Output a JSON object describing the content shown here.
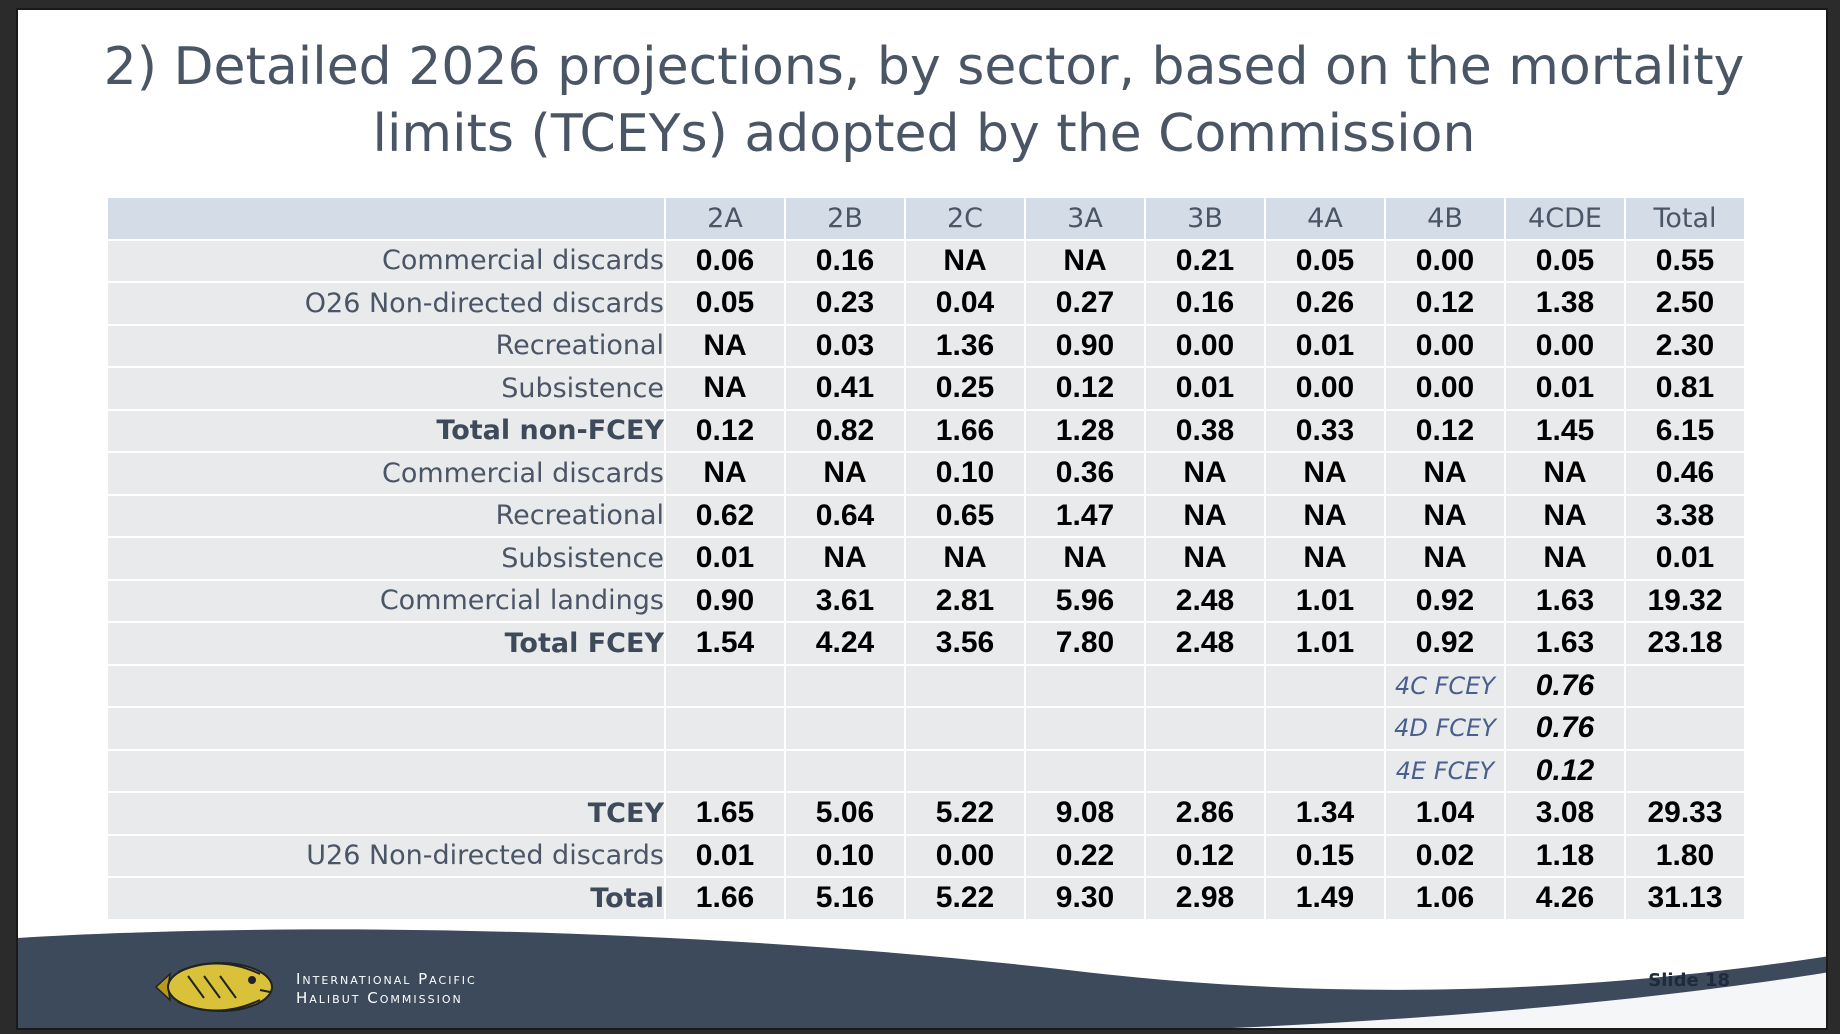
{
  "slide": {
    "title_line1": "2) Detailed 2026 projections, by sector, based on the mortality",
    "title_line2": "limits (TCEYs) adopted by the Commission",
    "org_line1": "International Pacific",
    "org_line2": "Halibut Commission",
    "slide_number": "Slide 18"
  },
  "table": {
    "columns": [
      "2A",
      "2B",
      "2C",
      "3A",
      "3B",
      "4A",
      "4B",
      "4CDE",
      "Total"
    ],
    "rows": [
      {
        "label": "Commercial discards",
        "values": [
          "0.06",
          "0.16",
          "NA",
          "NA",
          "0.21",
          "0.05",
          "0.00",
          "0.05",
          "0.55"
        ]
      },
      {
        "label": "O26 Non-directed discards",
        "values": [
          "0.05",
          "0.23",
          "0.04",
          "0.27",
          "0.16",
          "0.26",
          "0.12",
          "1.38",
          "2.50"
        ]
      },
      {
        "label": "Recreational",
        "values": [
          "NA",
          "0.03",
          "1.36",
          "0.90",
          "0.00",
          "0.01",
          "0.00",
          "0.00",
          "2.30"
        ]
      },
      {
        "label": "Subsistence",
        "values": [
          "NA",
          "0.41",
          "0.25",
          "0.12",
          "0.01",
          "0.00",
          "0.00",
          "0.01",
          "0.81"
        ]
      },
      {
        "label": "Total non-FCEY",
        "values": [
          "0.12",
          "0.82",
          "1.66",
          "1.28",
          "0.38",
          "0.33",
          "0.12",
          "1.45",
          "6.15"
        ]
      },
      {
        "label": "Commercial discards",
        "values": [
          "NA",
          "NA",
          "0.10",
          "0.36",
          "NA",
          "NA",
          "NA",
          "NA",
          "0.46"
        ]
      },
      {
        "label": "Recreational",
        "values": [
          "0.62",
          "0.64",
          "0.65",
          "1.47",
          "NA",
          "NA",
          "NA",
          "NA",
          "3.38"
        ]
      },
      {
        "label": "Subsistence",
        "values": [
          "0.01",
          "NA",
          "NA",
          "NA",
          "NA",
          "NA",
          "NA",
          "NA",
          "0.01"
        ]
      },
      {
        "label": "Commercial landings",
        "values": [
          "0.90",
          "3.61",
          "2.81",
          "5.96",
          "2.48",
          "1.01",
          "0.92",
          "1.63",
          "19.32"
        ]
      },
      {
        "label": "Total FCEY",
        "values": [
          "1.54",
          "4.24",
          "3.56",
          "7.80",
          "2.48",
          "1.01",
          "0.92",
          "1.63",
          "23.18"
        ]
      }
    ],
    "sub_rows": [
      {
        "label": "4C FCEY",
        "value": "0.76"
      },
      {
        "label": "4D FCEY",
        "value": "0.76"
      },
      {
        "label": "4E FCEY",
        "value": "0.12"
      }
    ],
    "rows_after": [
      {
        "label": "TCEY",
        "values": [
          "1.65",
          "5.06",
          "5.22",
          "9.08",
          "2.86",
          "1.34",
          "1.04",
          "3.08",
          "29.33"
        ]
      },
      {
        "label": "U26 Non-directed discards",
        "values": [
          "0.01",
          "0.10",
          "0.00",
          "0.22",
          "0.12",
          "0.15",
          "0.02",
          "1.18",
          "1.80"
        ]
      },
      {
        "label": "Total",
        "values": [
          "1.66",
          "5.16",
          "5.22",
          "9.30",
          "2.98",
          "1.49",
          "1.06",
          "4.26",
          "31.13"
        ]
      }
    ]
  },
  "colors": {
    "header_bg": "#d4dde7",
    "row_bg": "#e9eaec",
    "label_text": "#4a5566",
    "footer_wave": "#3c4a5c"
  }
}
